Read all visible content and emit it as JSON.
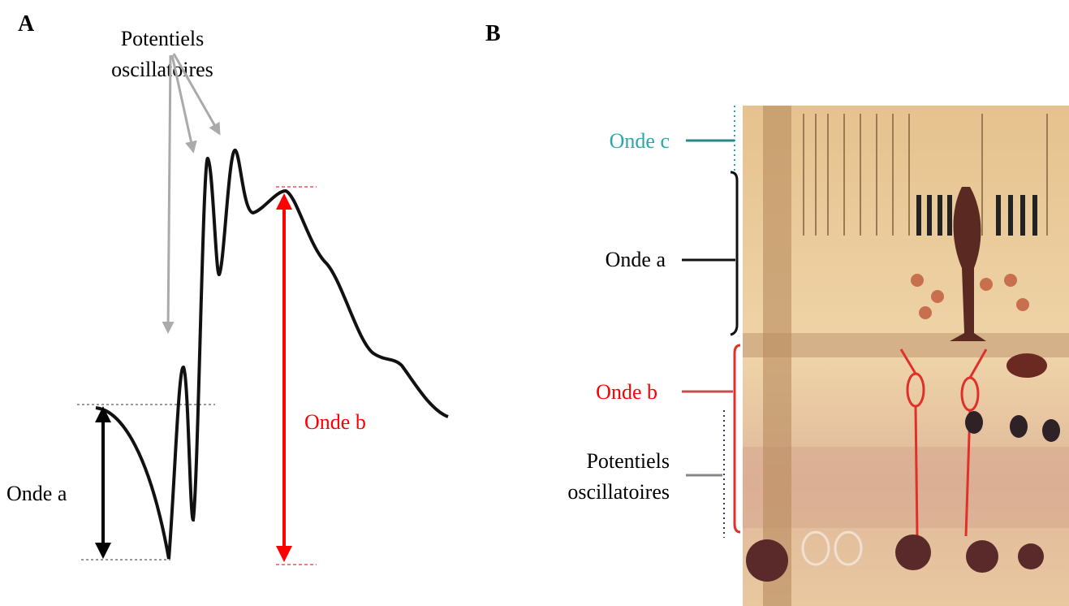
{
  "panel_a": {
    "label": "A",
    "annotations": {
      "oscillatory_potentials": [
        "Potentiels",
        "oscillatoires"
      ],
      "a_wave": "Onde a",
      "b_wave": "Onde b"
    }
  },
  "panel_b": {
    "label": "B",
    "annotations": {
      "c_wave": "Onde c",
      "a_wave": "Onde a",
      "b_wave": "Onde b",
      "oscillatory_potentials": [
        "Potentiels",
        "oscillatoires"
      ]
    }
  }
}
